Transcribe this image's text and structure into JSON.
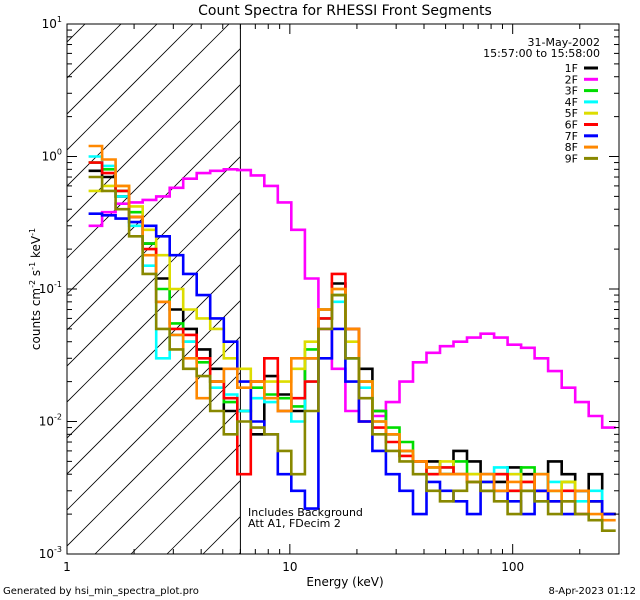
{
  "chart_data": {
    "type": "line",
    "title": "Count Spectra for RHESSI Front Segments",
    "date": "31-May-2002",
    "time_range": "15:57:00 to 15:58:00",
    "xlabel": "Energy (keV)",
    "ylabel_parts": {
      "a": "counts cm",
      "b": "-2",
      "c": " s",
      "d": "-1",
      "e": " keV",
      "f": "-1"
    },
    "xscale": "log",
    "yscale": "log",
    "xlim": [
      1,
      300
    ],
    "ylim": [
      0.001,
      10
    ],
    "x_ticks": [
      {
        "value": 1,
        "label": "1"
      },
      {
        "value": 10,
        "label": "10"
      },
      {
        "value": 100,
        "label": "100"
      }
    ],
    "y_ticks": [
      {
        "value": 0.001,
        "base": "10",
        "exp": "-3"
      },
      {
        "value": 0.01,
        "base": "10",
        "exp": "-2"
      },
      {
        "value": 0.1,
        "base": "10",
        "exp": "-1"
      },
      {
        "value": 1,
        "base": "10",
        "exp": "0"
      },
      {
        "value": 10,
        "base": "10",
        "exp": "1"
      }
    ],
    "hatched_region_max_keV": 6,
    "annotations": [
      "Includes Background",
      "Att A1, FDecim 2"
    ],
    "footer_left": "Generated by hsi_min_spectra_plot.pro",
    "footer_right": "8-Apr-2023 01:12",
    "series": [
      {
        "name": "1F",
        "color": "#000000",
        "values": [
          0.78,
          0.7,
          0.5,
          0.35,
          0.22,
          0.12,
          0.07,
          0.05,
          0.035,
          0.025,
          0.012,
          0.012,
          0.008,
          0.022,
          0.016,
          0.012,
          0.03,
          0.07,
          0.11,
          0.05,
          0.025,
          0.012,
          0.008,
          0.006,
          0.005,
          0.005,
          0.004,
          0.006,
          0.005,
          0.004,
          0.0035,
          0.0045,
          0.004,
          0.003,
          0.005,
          0.004,
          0.003,
          0.004,
          0.002
        ]
      },
      {
        "name": "2F",
        "color": "#ff00ff",
        "values": [
          0.3,
          0.38,
          0.44,
          0.45,
          0.47,
          0.5,
          0.58,
          0.68,
          0.75,
          0.78,
          0.8,
          0.79,
          0.72,
          0.6,
          0.45,
          0.28,
          0.12,
          0.05,
          0.025,
          0.012,
          0.01,
          0.011,
          0.014,
          0.02,
          0.028,
          0.033,
          0.037,
          0.04,
          0.043,
          0.046,
          0.043,
          0.038,
          0.036,
          0.03,
          0.024,
          0.018,
          0.014,
          0.011,
          0.009
        ]
      },
      {
        "name": "3F",
        "color": "#00dd00",
        "values": [
          0.9,
          0.8,
          0.55,
          0.38,
          0.22,
          0.1,
          0.055,
          0.04,
          0.028,
          0.02,
          0.014,
          0.012,
          0.018,
          0.016,
          0.015,
          0.013,
          0.035,
          0.06,
          0.09,
          0.03,
          0.02,
          0.012,
          0.009,
          0.007,
          0.005,
          0.0045,
          0.004,
          0.005,
          0.004,
          0.0035,
          0.004,
          0.003,
          0.0045,
          0.004,
          0.003,
          0.0035,
          0.003,
          0.0025,
          0.002
        ]
      },
      {
        "name": "4F",
        "color": "#00ffff",
        "values": [
          1.0,
          0.85,
          0.5,
          0.3,
          0.15,
          0.03,
          0.045,
          0.04,
          0.03,
          0.018,
          0.016,
          0.012,
          0.015,
          0.014,
          0.012,
          0.01,
          0.02,
          0.06,
          0.08,
          0.03,
          0.018,
          0.01,
          0.008,
          0.006,
          0.005,
          0.004,
          0.0045,
          0.004,
          0.0035,
          0.003,
          0.0045,
          0.004,
          0.003,
          0.0025,
          0.0035,
          0.003,
          0.0025,
          0.003,
          0.002
        ]
      },
      {
        "name": "5F",
        "color": "#dddd00",
        "values": [
          0.55,
          0.6,
          0.6,
          0.42,
          0.28,
          0.18,
          0.1,
          0.07,
          0.06,
          0.05,
          0.03,
          0.025,
          0.02,
          0.02,
          0.02,
          0.025,
          0.04,
          0.07,
          0.1,
          0.04,
          0.02,
          0.01,
          0.008,
          0.006,
          0.005,
          0.004,
          0.005,
          0.004,
          0.004,
          0.0035,
          0.003,
          0.004,
          0.0035,
          0.003,
          0.003,
          0.0035,
          0.003,
          0.0025,
          0.002
        ]
      },
      {
        "name": "6F",
        "color": "#ff0000",
        "values": [
          0.9,
          0.75,
          0.55,
          0.35,
          0.2,
          0.08,
          0.05,
          0.045,
          0.03,
          0.02,
          0.015,
          0.004,
          0.02,
          0.03,
          0.012,
          0.015,
          0.02,
          0.06,
          0.13,
          0.05,
          0.01,
          0.009,
          0.007,
          0.0055,
          0.005,
          0.004,
          0.0045,
          0.004,
          0.0035,
          0.003,
          0.004,
          0.003,
          0.0035,
          0.003,
          0.0025,
          0.003,
          0.002,
          0.0025,
          0.002
        ]
      },
      {
        "name": "7F",
        "color": "#0000ff",
        "values": [
          0.37,
          0.36,
          0.34,
          0.32,
          0.3,
          0.25,
          0.18,
          0.13,
          0.09,
          0.06,
          0.04,
          0.02,
          0.01,
          0.008,
          0.004,
          0.003,
          0.0022,
          0.03,
          0.05,
          0.02,
          0.01,
          0.006,
          0.004,
          0.003,
          0.002,
          0.0035,
          0.003,
          0.0025,
          0.002,
          0.0035,
          0.003,
          0.0025,
          0.002,
          0.003,
          0.0025,
          0.002,
          0.003,
          0.0025,
          0.002
        ]
      },
      {
        "name": "8F",
        "color": "#ff8800",
        "values": [
          1.2,
          0.95,
          0.6,
          0.35,
          0.18,
          0.08,
          0.045,
          0.03,
          0.015,
          0.02,
          0.025,
          0.018,
          0.02,
          0.015,
          0.012,
          0.03,
          0.03,
          0.07,
          0.1,
          0.05,
          0.02,
          0.01,
          0.008,
          0.006,
          0.005,
          0.0045,
          0.004,
          0.004,
          0.0035,
          0.004,
          0.003,
          0.0035,
          0.003,
          0.004,
          0.003,
          0.0025,
          0.003,
          0.002,
          0.0018
        ]
      },
      {
        "name": "9F",
        "color": "#888800",
        "values": [
          0.7,
          0.55,
          0.4,
          0.25,
          0.13,
          0.05,
          0.035,
          0.025,
          0.022,
          0.012,
          0.008,
          0.01,
          0.009,
          0.008,
          0.006,
          0.004,
          0.012,
          0.05,
          0.09,
          0.03,
          0.015,
          0.008,
          0.006,
          0.005,
          0.004,
          0.003,
          0.0025,
          0.003,
          0.0035,
          0.003,
          0.0025,
          0.002,
          0.003,
          0.0025,
          0.002,
          0.0025,
          0.002,
          0.0018,
          0.0015
        ]
      }
    ]
  }
}
